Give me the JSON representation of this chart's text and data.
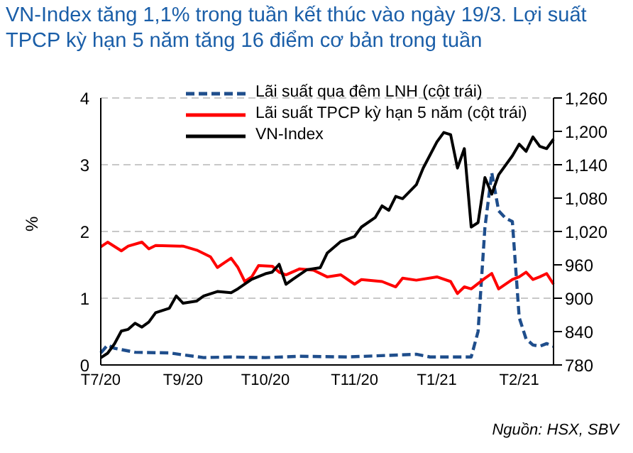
{
  "chart_data": {
    "type": "line",
    "title": "VN-Index tăng 1,1% trong tuần kết thúc vào ngày 19/3. Lợi suất TPCP kỳ hạn 5 năm tăng 16 điểm cơ bản trong tuần",
    "ylabel": "%",
    "annotations": [
      "Nguồn: HSX, SBV"
    ],
    "categories": [
      "T7/20",
      null,
      null,
      null,
      null,
      null,
      null,
      null,
      null,
      null,
      null,
      null,
      "T9/20",
      null,
      null,
      null,
      null,
      null,
      null,
      null,
      null,
      null,
      null,
      null,
      "T10/20",
      null,
      null,
      null,
      null,
      null,
      null,
      null,
      null,
      null,
      null,
      null,
      null,
      "T11/20",
      null,
      null,
      null,
      null,
      null,
      null,
      null,
      null,
      null,
      null,
      null,
      "T1/21",
      null,
      null,
      null,
      null,
      null,
      null,
      null,
      null,
      null,
      null,
      null,
      "T2/21",
      null,
      null,
      null,
      null,
      null
    ],
    "ylim": [
      0,
      4
    ],
    "yticks": [
      0,
      1,
      2,
      3,
      4
    ],
    "y2lim": [
      780,
      1260
    ],
    "y2ticks": [
      780,
      840,
      900,
      960,
      {
        "value": 1020,
        "label": "1,020"
      },
      {
        "value": 1080,
        "label": "1,080"
      },
      {
        "value": 1140,
        "label": "1,140"
      },
      {
        "value": 1200,
        "label": "1,200"
      },
      {
        "value": 1260,
        "label": "1,260"
      }
    ],
    "grid": "y",
    "legend": "top",
    "marker": "none",
    "series": [
      {
        "name": "Lãi suất qua đêm LNH (cột trái)",
        "color": "#1f4e8c",
        "line_style": "dashed",
        "values": [
          0.18,
          0.3,
          0.25,
          null,
          null,
          0.19,
          null,
          null,
          null,
          null,
          0.18,
          null,
          null,
          null,
          null,
          0.11,
          null,
          null,
          null,
          0.12,
          null,
          null,
          null,
          null,
          0.11,
          null,
          null,
          null,
          null,
          0.13,
          null,
          null,
          null,
          null,
          null,
          null,
          0.12,
          null,
          null,
          null,
          null,
          null,
          null,
          null,
          null,
          null,
          0.16,
          null,
          0.12,
          null,
          null,
          null,
          null,
          null,
          0.12,
          0.5,
          2.06,
          2.88,
          2.31,
          2.2,
          2.15,
          0.71,
          0.39,
          0.3,
          0.28,
          0.32,
          0.28
        ]
      },
      {
        "name": "Lãi suất TPCP kỳ hạn 5 năm (cột trái)",
        "color": "#ff0000",
        "line_style": "solid",
        "values": [
          1.77,
          1.84,
          null,
          1.71,
          1.78,
          null,
          1.84,
          1.74,
          1.79,
          null,
          null,
          null,
          1.78,
          null,
          1.72,
          null,
          1.62,
          1.46,
          1.53,
          1.6,
          1.46,
          1.25,
          1.32,
          1.49,
          null,
          1.48,
          1.39,
          1.35,
          null,
          1.44,
          null,
          1.42,
          null,
          1.32,
          null,
          1.35,
          null,
          1.21,
          1.28,
          null,
          null,
          1.25,
          null,
          1.17,
          1.3,
          null,
          1.27,
          null,
          null,
          1.32,
          null,
          1.25,
          1.07,
          1.17,
          1.14,
          null,
          1.3,
          1.37,
          1.14,
          null,
          1.28,
          1.32,
          1.39,
          1.28,
          1.32,
          1.37,
          1.21
        ]
      },
      {
        "name": "VN-Index",
        "color": "#000000",
        "line_style": "solid",
        "axis": "y2",
        "values": [
          793,
          801,
          818,
          841,
          844,
          855,
          848,
          857,
          874,
          null,
          882,
          904,
          891,
          null,
          895,
          904,
          null,
          912,
          null,
          910,
          917,
          null,
          934,
          null,
          944,
          947,
          961,
          925,
          934,
          null,
          951,
          null,
          955,
          981,
          null,
          1002,
          null,
          1011,
          1028,
          null,
          1045,
          1066,
          1058,
          1083,
          1079,
          null,
          1104,
          1134,
          null,
          1181,
          1198,
          1194,
          1134,
          1169,
          1028,
          1036,
          1117,
          1087,
          1122,
          null,
          1156,
          1177,
          1164,
          1190,
          1173,
          1169,
          1186
        ]
      }
    ]
  }
}
